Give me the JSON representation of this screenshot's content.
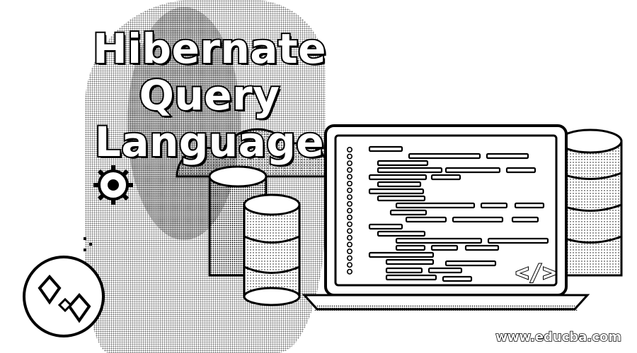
{
  "title": {
    "line1": "Hibernate Query",
    "line2": "Language"
  },
  "watermark": "www.educba.com",
  "icons": {
    "code": "</>",
    "logo": "diamond-cubes-logo",
    "laptop": "laptop-icon",
    "database": "database-icon",
    "gear": "gear-icon",
    "cloud": "cloud-icon"
  },
  "colors": {
    "ink": "#000000",
    "paper": "#ffffff"
  }
}
